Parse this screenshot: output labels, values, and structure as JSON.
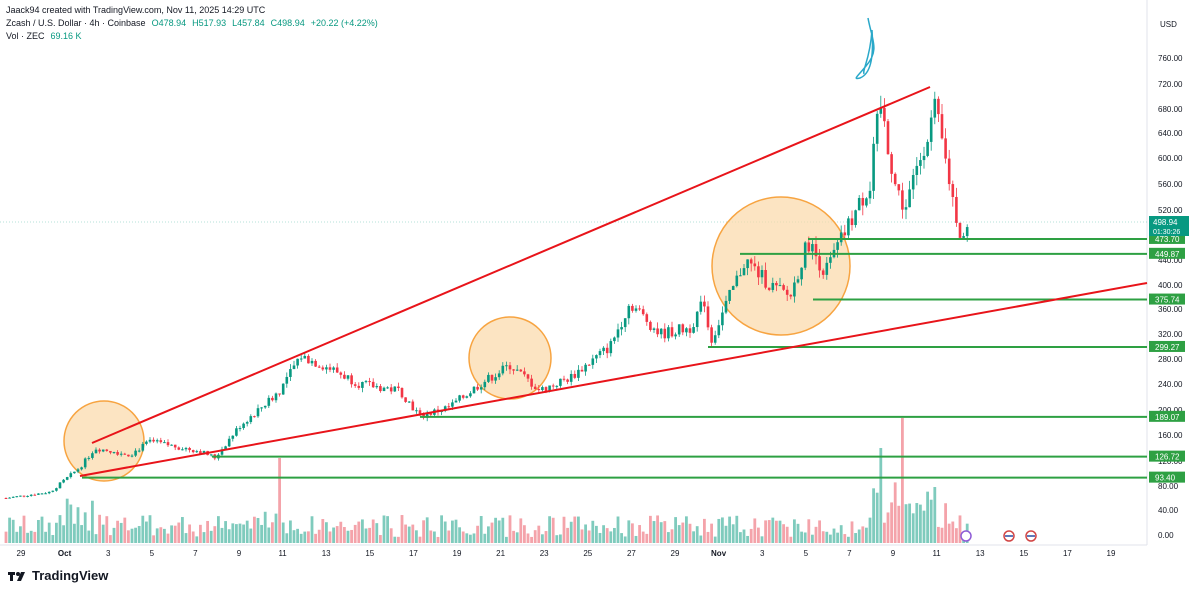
{
  "header": {
    "created_by": "Jaack94 created with TradingView.com, Nov 11, 2025 14:29 UTC",
    "symbol": "Zcash / U.S. Dollar · 4h · Coinbase",
    "open": "O478.94",
    "high": "H517.93",
    "low": "L457.84",
    "close": "C498.94",
    "change": "+20.22 (+4.22%)",
    "vol_label": "Vol · ZEC",
    "vol_value": "69.16 K"
  },
  "axis": {
    "currency": "USD"
  },
  "footer": {
    "brand": "TradingView"
  },
  "colors": {
    "up": "#089981",
    "down": "#f23645",
    "trend": "#e8141a",
    "level": "#2ea043",
    "circle": "#f7a441",
    "circle_fill": "#fbd9a8"
  },
  "chart_data": {
    "type": "candlestick",
    "price_axis": {
      "min": 0,
      "max": 800,
      "scale": "log-like",
      "ticks": [
        0,
        40,
        80,
        120,
        160,
        200,
        240,
        280,
        320,
        360,
        400,
        440,
        520,
        560,
        600,
        640,
        680,
        720,
        760
      ]
    },
    "time_axis": {
      "ticks": [
        "29",
        "Oct",
        "3",
        "5",
        "7",
        "9",
        "11",
        "13",
        "15",
        "17",
        "19",
        "21",
        "23",
        "25",
        "27",
        "29",
        "Nov",
        "3",
        "5",
        "7",
        "9",
        "11",
        "13",
        "15",
        "17",
        "19"
      ]
    },
    "current_price": {
      "value": "498.94",
      "countdown": "01:30:26"
    },
    "levels": [
      {
        "label": "473.70",
        "value": 473.7
      },
      {
        "label": "449.87",
        "value": 449.87
      },
      {
        "label": "375.74",
        "value": 375.74
      },
      {
        "label": "299.27",
        "value": 299.27
      },
      {
        "label": "189.07",
        "value": 189.07
      },
      {
        "label": "126.72",
        "value": 126.72
      },
      {
        "label": "93.40",
        "value": 93.4
      }
    ],
    "grid": false,
    "annotations": [
      "rising-wedge trendlines",
      "three highlighted circles",
      "hand-drawn scribble at top"
    ]
  }
}
